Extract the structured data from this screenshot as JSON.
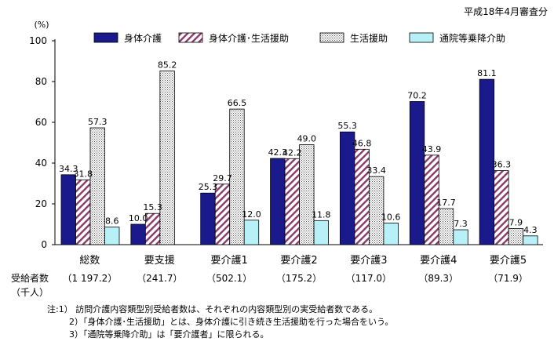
{
  "date_note": "平成18年4月審査分",
  "colors": {
    "s1": "#1a1a8c",
    "s2_line": "#8a3a6a",
    "s2_bg": "#ffffff",
    "s3_dot": "#555555",
    "s4": "#b8f0f8"
  },
  "chart_data": {
    "type": "bar",
    "unit_label": "(%)",
    "ylim": [
      0,
      100
    ],
    "yticks": [
      0,
      20,
      40,
      60,
      80,
      100
    ],
    "categories": [
      "総数",
      "要支援",
      "要介護1",
      "要介護2",
      "要介護3",
      "要介護4",
      "要介護5"
    ],
    "series": [
      {
        "name": "身体介護",
        "pattern": "solid-navy",
        "values": [
          34.3,
          10.0,
          25.3,
          42.3,
          55.3,
          70.2,
          81.1
        ],
        "labels": [
          "34.3",
          "10.0",
          "25.3",
          "42.3",
          "55.3",
          "70.2",
          "81.1"
        ]
      },
      {
        "name": "身体介護･生活援助",
        "pattern": "hatch",
        "values": [
          31.8,
          15.3,
          29.7,
          42.2,
          46.8,
          43.9,
          36.3
        ],
        "labels": [
          "31.8",
          "15.3",
          "29.7",
          "42.2",
          "46.8",
          "43.9",
          "36.3"
        ]
      },
      {
        "name": "生活援助",
        "pattern": "dots",
        "values": [
          57.3,
          85.2,
          66.5,
          49.0,
          33.4,
          17.7,
          7.9
        ],
        "labels": [
          "57.3",
          "85.2",
          "66.5",
          "49.0",
          "33.4",
          "17.7",
          "7.9"
        ]
      },
      {
        "name": "通院等乗降介助",
        "pattern": "solid-cyan",
        "values": [
          8.6,
          null,
          12.0,
          11.8,
          10.6,
          7.3,
          4.3
        ],
        "labels": [
          "8.6",
          "",
          "12.0",
          "11.8",
          "10.6",
          "7.3",
          "4.3"
        ]
      }
    ],
    "recipients": {
      "label_line1": "受給者数",
      "label_line2": "（千人）",
      "values": [
        "（1 197.2）",
        "（241.7）",
        "（502.1）",
        "（175.2）",
        "（117.0）",
        "（89.3）",
        "（71.9）"
      ]
    }
  },
  "notes": [
    "注:1） 訪問介護内容類型別受給者数は、それぞれの内容類型別の実受給者数である。",
    "2）「身体介護･生活援助」とは、身体介護に引き続き生活援助を行った場合をいう。",
    "3）「通院等乗降介助」は「要介護者」に限られる。"
  ]
}
